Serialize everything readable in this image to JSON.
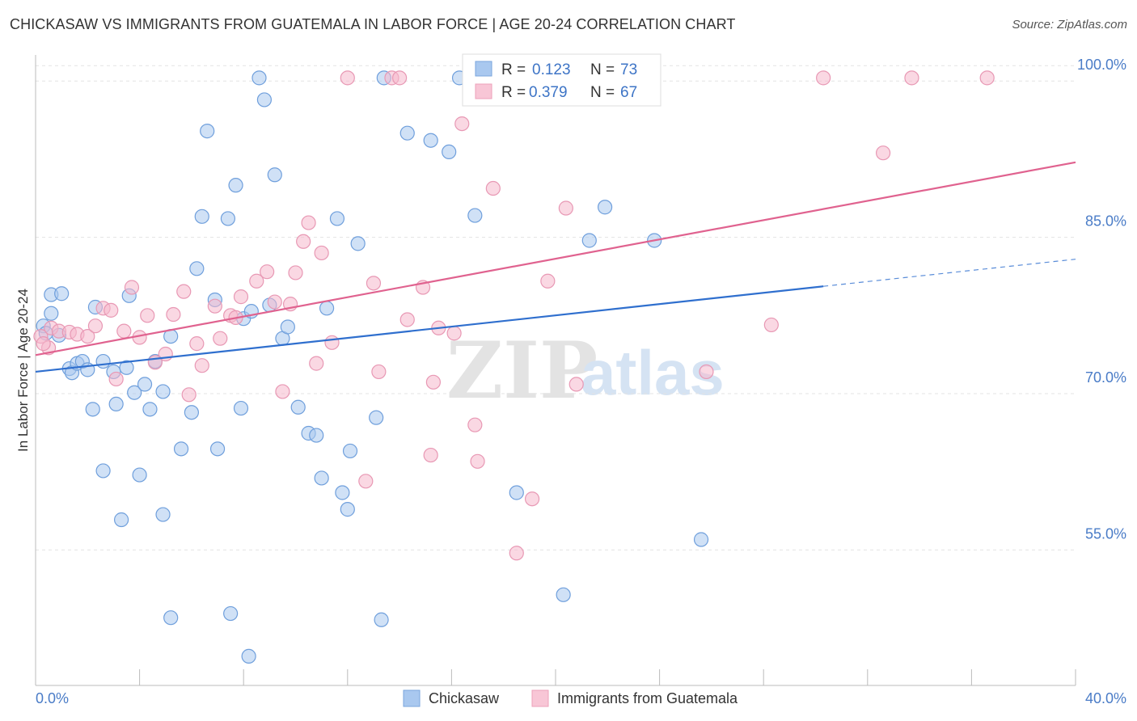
{
  "title": "CHICKASAW VS IMMIGRANTS FROM GUATEMALA IN LABOR FORCE | AGE 20-24 CORRELATION CHART",
  "source": "Source: ZipAtlas.com",
  "watermark": {
    "zip": "ZIP",
    "atlas": "atlas"
  },
  "chart_data": {
    "type": "scatter",
    "title": "CHICKASAW VS IMMIGRANTS FROM GUATEMALA IN LABOR FORCE | AGE 20-24 CORRELATION CHART",
    "xlabel": "",
    "ylabel": "In Labor Force | Age 20-24",
    "xlim": [
      0,
      40
    ],
    "ylim": [
      42,
      102.5
    ],
    "x_tick_labels": [
      "0.0%",
      "40.0%"
    ],
    "y_ticks": [
      55,
      70,
      85,
      100
    ],
    "y_tick_labels": [
      "55.0%",
      "70.0%",
      "85.0%",
      "100.0%"
    ],
    "grid": true,
    "legend_position": "top-center",
    "colors": {
      "chickasaw": "#a9c8ef",
      "chickasaw_line": "#2f6fce",
      "guatemala": "#f5b8cc",
      "guatemala_line": "#e0628f",
      "tick_text": "#4a7cc7"
    },
    "series": [
      {
        "name": "Chickasaw",
        "r": "0.123",
        "n": "73",
        "trend": {
          "x": [
            0,
            30.3
          ],
          "y": [
            72.1,
            80.3
          ],
          "dashed_to_x": 40,
          "dashed_to_y": 82.9
        },
        "points": [
          [
            0.3,
            76.5
          ],
          [
            0.6,
            77.7
          ],
          [
            0.9,
            75.6
          ],
          [
            0.6,
            79.5
          ],
          [
            1.0,
            79.6
          ],
          [
            1.3,
            72.4
          ],
          [
            1.4,
            72.0
          ],
          [
            1.6,
            72.9
          ],
          [
            1.8,
            73.1
          ],
          [
            2.0,
            72.3
          ],
          [
            2.2,
            68.5
          ],
          [
            2.3,
            78.3
          ],
          [
            2.6,
            73.1
          ],
          [
            2.6,
            62.6
          ],
          [
            3.0,
            72.1
          ],
          [
            3.1,
            69.0
          ],
          [
            3.3,
            57.9
          ],
          [
            3.5,
            72.5
          ],
          [
            3.6,
            79.4
          ],
          [
            3.8,
            70.1
          ],
          [
            4.0,
            62.2
          ],
          [
            4.2,
            70.9
          ],
          [
            4.4,
            68.5
          ],
          [
            4.6,
            73.1
          ],
          [
            4.9,
            70.2
          ],
          [
            4.9,
            58.4
          ],
          [
            5.2,
            48.5
          ],
          [
            5.2,
            75.5
          ],
          [
            5.6,
            64.7
          ],
          [
            6.0,
            68.2
          ],
          [
            6.2,
            82.0
          ],
          [
            6.4,
            87.0
          ],
          [
            6.6,
            95.2
          ],
          [
            6.9,
            79.0
          ],
          [
            7.0,
            64.7
          ],
          [
            7.4,
            86.8
          ],
          [
            7.5,
            48.9
          ],
          [
            7.7,
            90.0
          ],
          [
            7.9,
            68.6
          ],
          [
            8.0,
            77.2
          ],
          [
            8.2,
            44.8
          ],
          [
            8.3,
            77.9
          ],
          [
            8.6,
            100.3
          ],
          [
            8.8,
            98.2
          ],
          [
            9.0,
            78.5
          ],
          [
            9.2,
            91.0
          ],
          [
            9.5,
            75.3
          ],
          [
            9.7,
            76.4
          ],
          [
            10.1,
            68.7
          ],
          [
            10.5,
            66.2
          ],
          [
            10.8,
            66.0
          ],
          [
            11.0,
            61.9
          ],
          [
            11.2,
            78.2
          ],
          [
            11.6,
            86.8
          ],
          [
            11.8,
            60.5
          ],
          [
            12.0,
            58.9
          ],
          [
            12.1,
            64.5
          ],
          [
            12.4,
            84.4
          ],
          [
            13.1,
            67.7
          ],
          [
            13.3,
            48.3
          ],
          [
            13.4,
            100.3
          ],
          [
            14.3,
            95.0
          ],
          [
            15.2,
            94.3
          ],
          [
            15.9,
            93.2
          ],
          [
            16.3,
            100.3
          ],
          [
            16.9,
            87.1
          ],
          [
            18.5,
            60.5
          ],
          [
            20.3,
            50.7
          ],
          [
            21.3,
            84.7
          ],
          [
            21.9,
            87.9
          ],
          [
            23.8,
            84.7
          ],
          [
            25.6,
            56.0
          ],
          [
            0.4,
            75.8
          ]
        ]
      },
      {
        "name": "Immigrants from Guatemala",
        "r": "0.379",
        "n": "67",
        "trend": {
          "x": [
            0,
            40
          ],
          "y": [
            73.7,
            92.2
          ]
        },
        "points": [
          [
            0.2,
            75.5
          ],
          [
            0.5,
            74.4
          ],
          [
            0.6,
            76.3
          ],
          [
            0.9,
            76.0
          ],
          [
            1.3,
            75.9
          ],
          [
            1.6,
            75.7
          ],
          [
            2.0,
            75.5
          ],
          [
            2.3,
            76.5
          ],
          [
            2.6,
            78.2
          ],
          [
            2.9,
            78.0
          ],
          [
            3.1,
            71.4
          ],
          [
            3.4,
            76.0
          ],
          [
            3.7,
            80.2
          ],
          [
            4.0,
            75.4
          ],
          [
            4.3,
            77.5
          ],
          [
            4.6,
            73.0
          ],
          [
            5.0,
            73.8
          ],
          [
            5.3,
            77.6
          ],
          [
            5.7,
            79.8
          ],
          [
            5.9,
            69.9
          ],
          [
            6.2,
            74.8
          ],
          [
            6.4,
            72.7
          ],
          [
            6.9,
            78.4
          ],
          [
            7.1,
            75.3
          ],
          [
            7.5,
            77.5
          ],
          [
            7.7,
            77.3
          ],
          [
            7.9,
            79.3
          ],
          [
            8.5,
            80.8
          ],
          [
            8.9,
            81.7
          ],
          [
            9.2,
            78.8
          ],
          [
            9.5,
            70.2
          ],
          [
            9.8,
            78.6
          ],
          [
            10.0,
            81.6
          ],
          [
            10.3,
            84.6
          ],
          [
            10.5,
            86.4
          ],
          [
            10.8,
            72.9
          ],
          [
            11.0,
            83.5
          ],
          [
            11.4,
            74.9
          ],
          [
            12.0,
            100.3
          ],
          [
            12.7,
            61.6
          ],
          [
            13.0,
            80.6
          ],
          [
            13.2,
            72.1
          ],
          [
            13.7,
            100.3
          ],
          [
            14.0,
            100.3
          ],
          [
            14.3,
            77.1
          ],
          [
            14.9,
            80.2
          ],
          [
            15.2,
            64.1
          ],
          [
            15.3,
            71.1
          ],
          [
            15.5,
            76.3
          ],
          [
            16.1,
            75.8
          ],
          [
            16.4,
            95.9
          ],
          [
            16.9,
            67.0
          ],
          [
            17.0,
            63.5
          ],
          [
            17.6,
            89.7
          ],
          [
            18.5,
            54.7
          ],
          [
            19.1,
            59.9
          ],
          [
            19.3,
            100.3
          ],
          [
            19.7,
            80.8
          ],
          [
            20.4,
            87.8
          ],
          [
            20.8,
            70.9
          ],
          [
            28.3,
            76.6
          ],
          [
            30.3,
            100.3
          ],
          [
            25.8,
            72.1
          ],
          [
            32.6,
            93.1
          ],
          [
            33.7,
            100.3
          ],
          [
            36.6,
            100.3
          ],
          [
            0.3,
            74.8
          ]
        ]
      }
    ]
  }
}
